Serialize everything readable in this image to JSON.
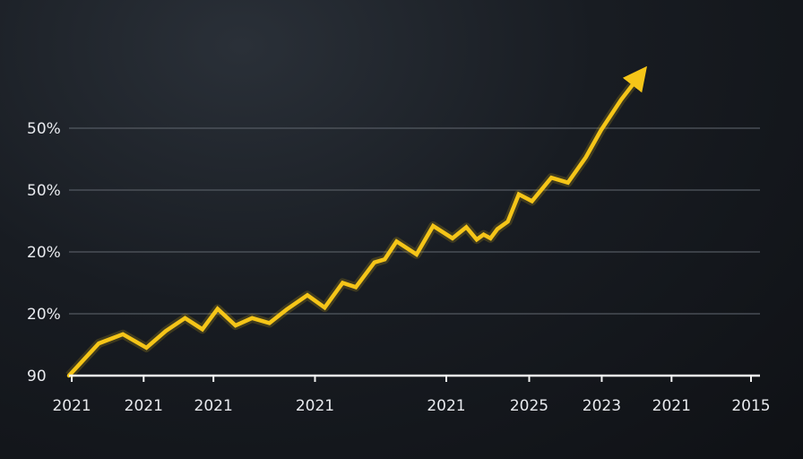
{
  "chart_data": {
    "type": "line",
    "title": "",
    "xlabel": "",
    "ylabel": "",
    "grid": true,
    "y_ticks": [
      {
        "label": "90",
        "value": 0
      },
      {
        "label": "20%",
        "value": 1
      },
      {
        "label": "20%",
        "value": 2
      },
      {
        "label": "50%",
        "value": 3
      },
      {
        "label": "50%",
        "value": 4
      }
    ],
    "x_ticks": [
      {
        "label": "2021",
        "x": 0.4
      },
      {
        "label": "2021",
        "x": 10.8
      },
      {
        "label": "2021",
        "x": 20.9
      },
      {
        "label": "2021",
        "x": 35.6
      },
      {
        "label": "2021",
        "x": 54.6
      },
      {
        "label": "2025",
        "x": 66.6
      },
      {
        "label": "2023",
        "x": 77.1
      },
      {
        "label": "2021",
        "x": 87.2
      },
      {
        "label": "2015",
        "x": 98.7
      }
    ],
    "xlim": [
      0,
      100
    ],
    "ylim": [
      0,
      4.8
    ],
    "series": [
      {
        "color": "#f5c518",
        "x": [
          0,
          4.3,
          7.8,
          11.2,
          14.0,
          16.8,
          19.3,
          21.5,
          24.1,
          26.5,
          29.0,
          31.5,
          34.5,
          37.0,
          39.6,
          41.5,
          44.2,
          45.7,
          47.4,
          50.3,
          52.7,
          55.5,
          57.5,
          59.0,
          60.0,
          61.0,
          62.0,
          63.5,
          65.1,
          67.0,
          69.8,
          72.2,
          74.8,
          77.0,
          79.9,
          82.8
        ],
        "y": [
          0,
          0.52,
          0.67,
          0.45,
          0.72,
          0.93,
          0.75,
          1.08,
          0.81,
          0.93,
          0.85,
          1.07,
          1.3,
          1.1,
          1.5,
          1.43,
          1.83,
          1.88,
          2.17,
          1.96,
          2.42,
          2.22,
          2.4,
          2.2,
          2.28,
          2.22,
          2.37,
          2.49,
          2.93,
          2.82,
          3.2,
          3.12,
          3.53,
          3.97,
          4.46,
          4.88
        ]
      }
    ]
  }
}
